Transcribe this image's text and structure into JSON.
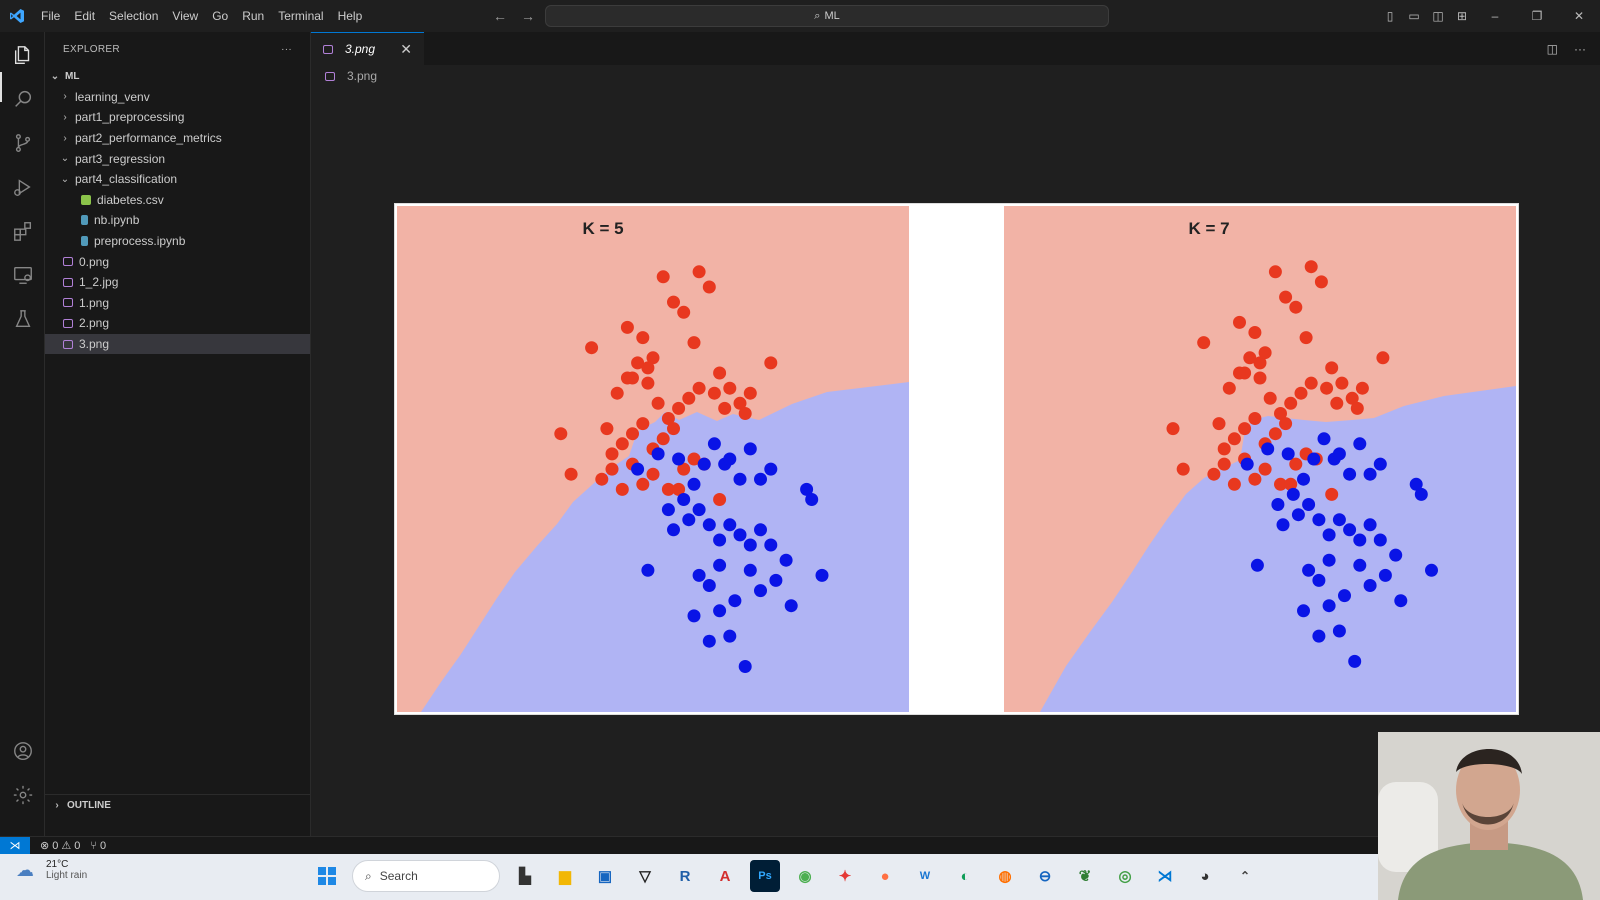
{
  "titlebar": {
    "menu": [
      "File",
      "Edit",
      "Selection",
      "View",
      "Go",
      "Run",
      "Terminal",
      "Help"
    ],
    "search_text": "ML"
  },
  "explorer": {
    "header": "EXPLORER",
    "more": "···",
    "root": "ML",
    "items": [
      {
        "label": "learning_venv",
        "type": "folder",
        "expanded": false,
        "indent": 1
      },
      {
        "label": "part1_preprocessing",
        "type": "folder",
        "expanded": false,
        "indent": 1
      },
      {
        "label": "part2_performance_metrics",
        "type": "folder",
        "expanded": false,
        "indent": 1
      },
      {
        "label": "part3_regression",
        "type": "folder",
        "expanded": true,
        "indent": 1
      },
      {
        "label": "part4_classification",
        "type": "folder",
        "expanded": true,
        "indent": 1
      },
      {
        "label": "diabetes.csv",
        "type": "csv",
        "indent": 2
      },
      {
        "label": "nb.ipynb",
        "type": "nb",
        "indent": 2
      },
      {
        "label": "preprocess.ipynb",
        "type": "nb",
        "indent": 2
      },
      {
        "label": "0.png",
        "type": "img",
        "indent": 1
      },
      {
        "label": "1_2.jpg",
        "type": "img",
        "indent": 1
      },
      {
        "label": "1.png",
        "type": "img",
        "indent": 1
      },
      {
        "label": "2.png",
        "type": "img",
        "indent": 1
      },
      {
        "label": "3.png",
        "type": "img",
        "indent": 1,
        "selected": true
      }
    ],
    "outline": "OUTLINE"
  },
  "editor": {
    "tab_label": "3.png",
    "breadcrumb": "3.png"
  },
  "chart_data": [
    {
      "type": "scatter",
      "title": "K = 5",
      "series": [
        {
          "color": "#e8381f",
          "x": [
            3.8,
            4.5,
            4.8,
            4.6,
            4.9,
            5.0,
            5.2,
            5.4,
            5.6,
            5.8,
            5.9,
            6.1,
            6.2,
            6.3,
            6.4,
            4.3,
            4.5,
            4.7,
            4.9,
            5.1,
            5.3,
            5.5,
            5.7,
            5.9,
            6.5,
            6.7,
            6.8,
            6.9,
            7.3,
            4.1,
            4.2,
            4.4,
            4.6,
            4.8,
            5.0,
            5.2,
            5.4,
            5.6,
            4.0,
            4.2,
            4.4,
            4.6,
            4.8,
            5.0,
            3.2,
            3.4,
            5.8,
            6.0,
            6.3,
            5.3,
            5.5
          ],
          "y": [
            7.2,
            7.6,
            7.4,
            6.6,
            6.8,
            7.0,
            8.6,
            8.1,
            7.9,
            7.3,
            8.7,
            8.4,
            6.3,
            6.7,
            6.0,
            6.3,
            6.6,
            6.9,
            6.5,
            6.1,
            5.8,
            6.0,
            6.2,
            6.4,
            6.4,
            6.1,
            5.9,
            6.3,
            6.9,
            5.6,
            5.1,
            5.3,
            5.5,
            5.7,
            5.2,
            5.4,
            5.6,
            4.8,
            4.6,
            4.8,
            4.4,
            4.9,
            4.5,
            4.7,
            5.5,
            4.7,
            5.0,
            4.9,
            4.2,
            4.4,
            4.4
          ]
        },
        {
          "color": "#0a14e6",
          "x": [
            4.7,
            5.1,
            5.5,
            5.8,
            6.0,
            6.2,
            6.4,
            6.5,
            6.7,
            6.9,
            7.1,
            7.3,
            5.3,
            5.6,
            5.9,
            6.1,
            6.3,
            6.5,
            6.7,
            6.9,
            7.1,
            7.3,
            7.6,
            8.0,
            8.1,
            4.9,
            5.4,
            5.7,
            5.9,
            6.1,
            6.3,
            6.6,
            6.9,
            7.1,
            7.4,
            7.7,
            8.3,
            5.8,
            6.1,
            6.3,
            6.5,
            6.8
          ],
          "y": [
            4.8,
            5.1,
            5.0,
            4.5,
            4.9,
            5.3,
            4.9,
            5.0,
            4.6,
            5.2,
            4.6,
            4.8,
            4.0,
            4.2,
            4.0,
            3.7,
            3.4,
            3.7,
            3.5,
            3.3,
            3.6,
            3.3,
            3.0,
            4.4,
            4.2,
            2.8,
            3.6,
            3.8,
            2.7,
            2.5,
            2.9,
            2.2,
            2.8,
            2.4,
            2.6,
            2.1,
            2.7,
            1.9,
            1.4,
            2.0,
            1.5,
            0.9
          ]
        }
      ]
    },
    {
      "type": "scatter",
      "title": "K = 7",
      "series": [
        {
          "color": "#e8381f"
        },
        {
          "color": "#0a14e6"
        }
      ]
    }
  ],
  "statusbar": {
    "errors": "0",
    "warnings": "0",
    "ports": "0"
  },
  "taskbar": {
    "temp": "21°C",
    "weather": "Light rain",
    "search": "Search"
  }
}
